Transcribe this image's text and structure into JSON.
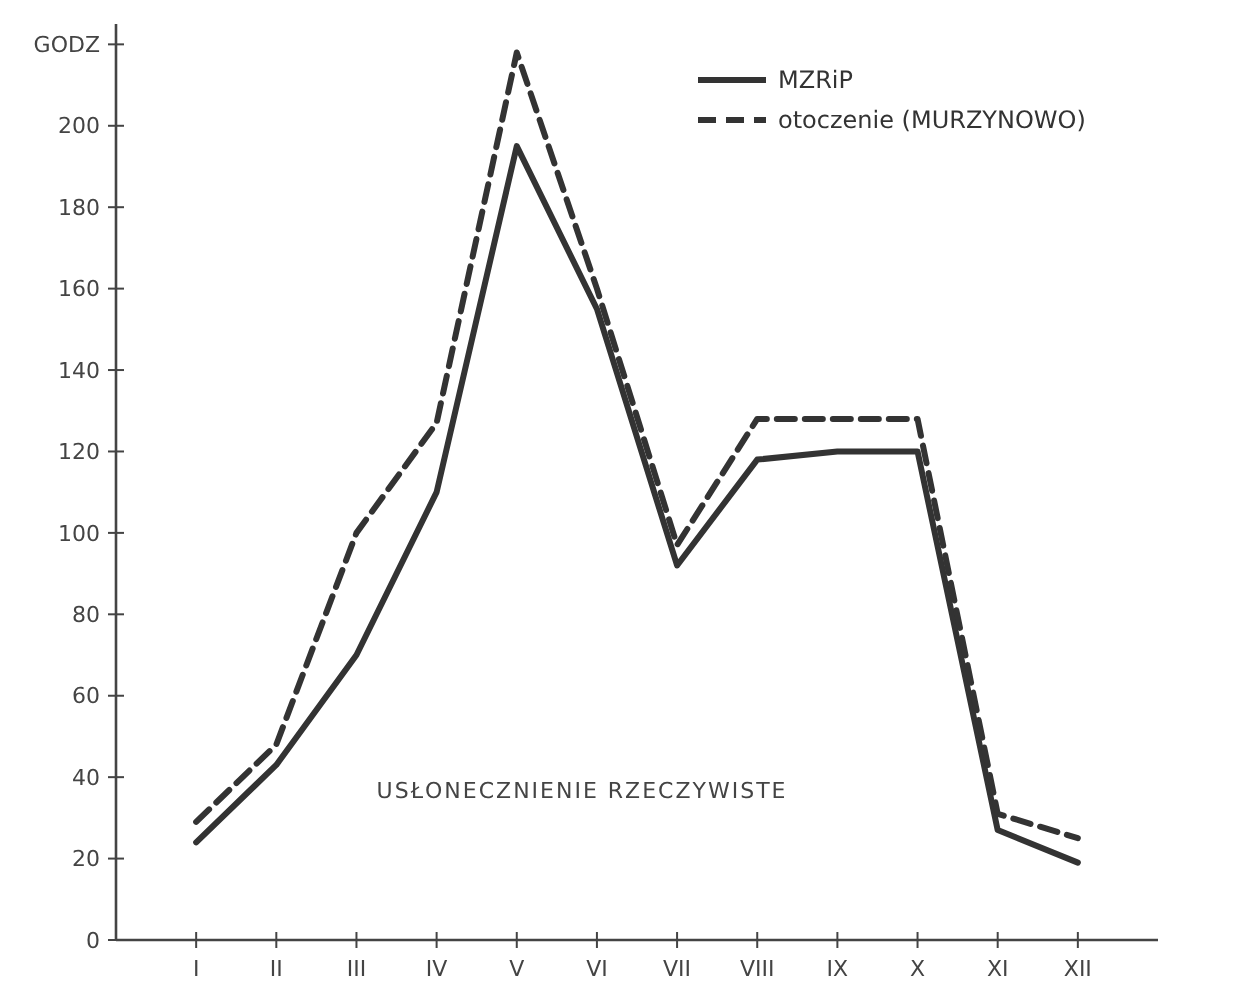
{
  "chart_data": {
    "type": "line",
    "categories": [
      "I",
      "II",
      "III",
      "IV",
      "V",
      "VI",
      "VII",
      "VIII",
      "IX",
      "X",
      "XI",
      "XII"
    ],
    "series": [
      {
        "name": "MZRiP",
        "color": "#333333",
        "line_style": "solid",
        "values": [
          24,
          43,
          70,
          110,
          195,
          155,
          92,
          118,
          120,
          120,
          27,
          19
        ]
      },
      {
        "name": "otoczenie (MURZYNOWO)",
        "color": "#333333",
        "line_style": "dashed",
        "values": [
          29,
          48,
          100,
          127,
          218,
          160,
          97,
          128,
          128,
          128,
          31,
          25
        ]
      }
    ],
    "ylim": [
      0,
      225
    ],
    "yticks": [
      0,
      20,
      40,
      60,
      80,
      100,
      120,
      140,
      160,
      180,
      200,
      {
        "value": 220,
        "label": "GODZ"
      }
    ],
    "annotations": [
      "USŁONECZNIENIE RZECZYWISTE"
    ],
    "legend": "top right",
    "grid": false
  }
}
